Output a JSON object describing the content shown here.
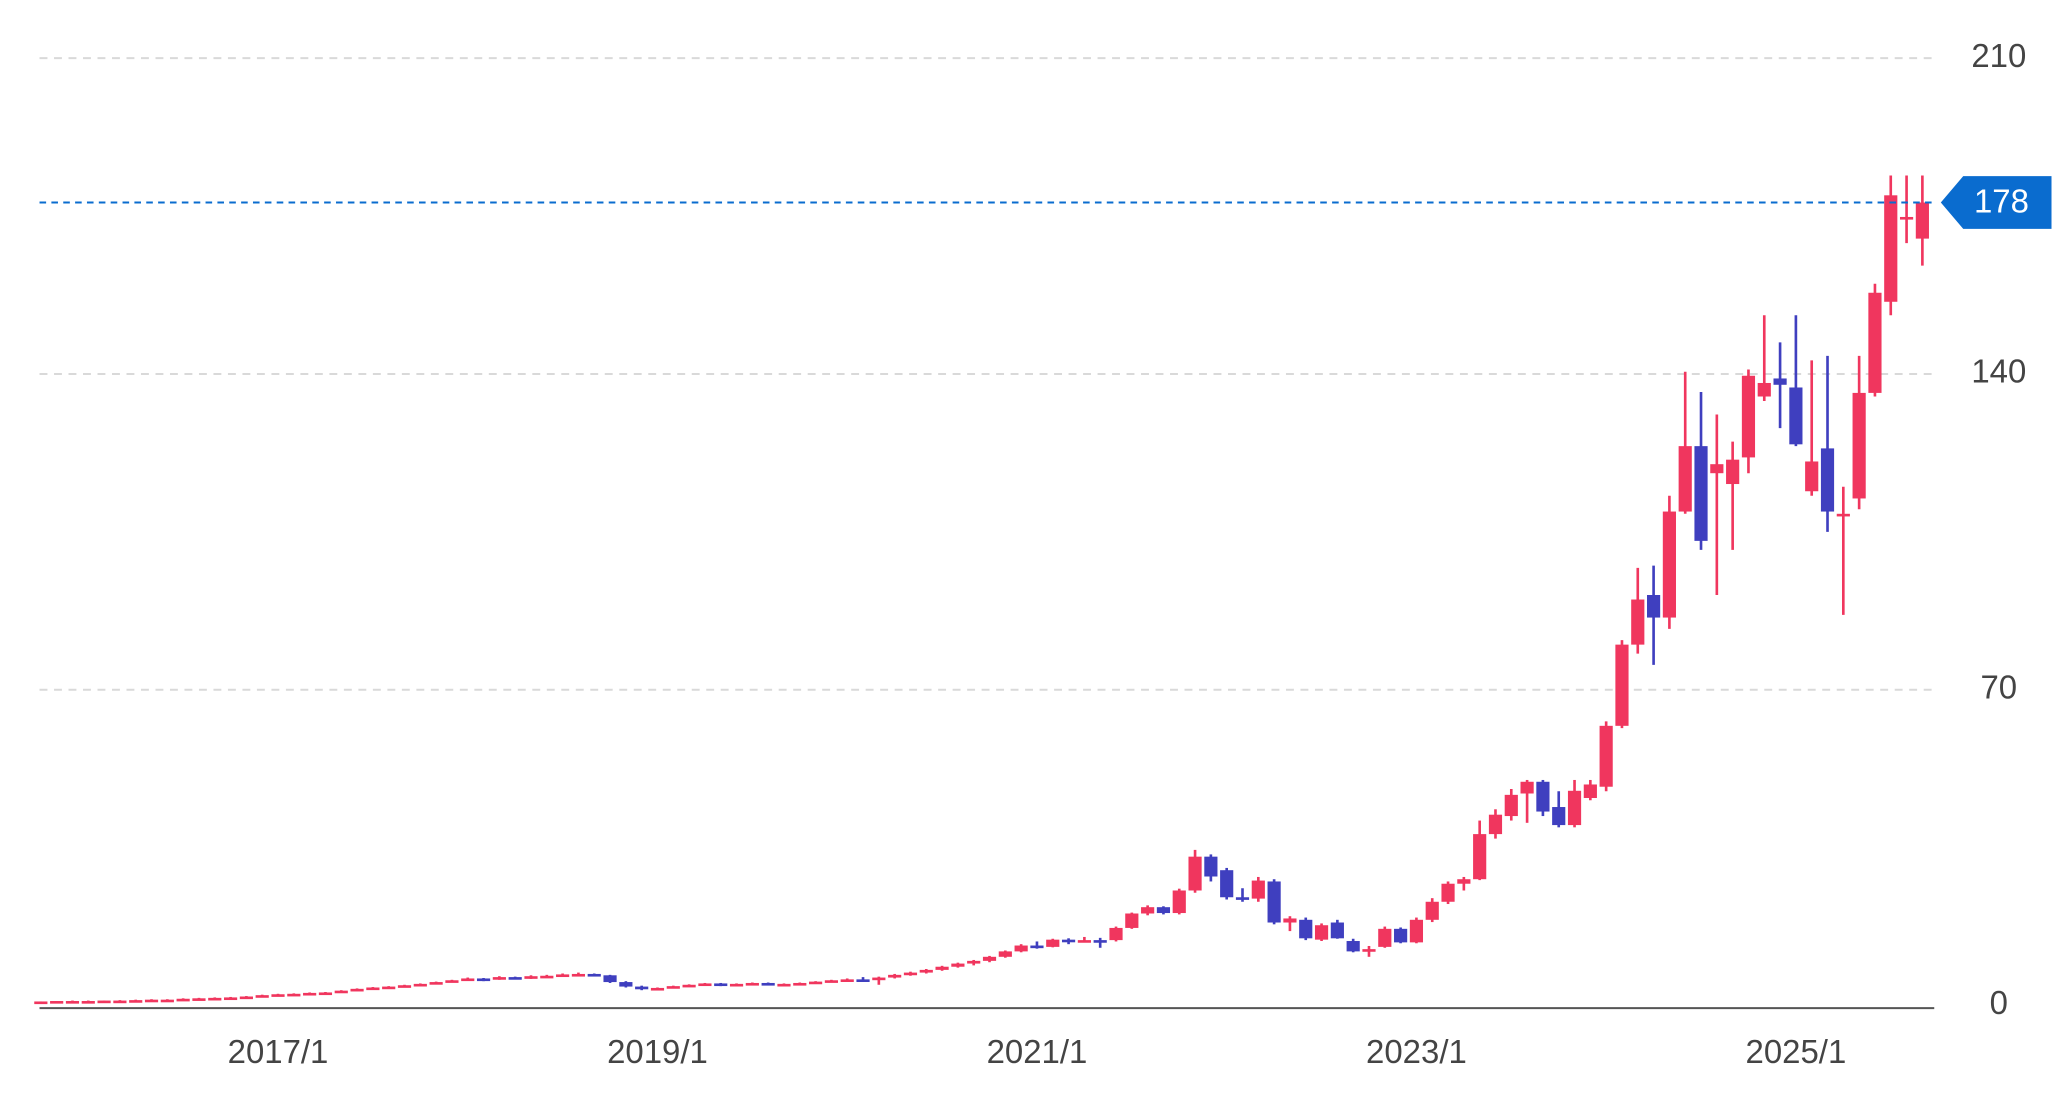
{
  "chart_data": {
    "type": "candlestick",
    "categories": [
      null,
      null,
      null,
      null,
      null,
      null,
      null,
      null,
      null,
      null,
      null,
      null,
      null,
      null,
      null,
      "2017/1",
      null,
      null,
      null,
      null,
      null,
      null,
      null,
      null,
      null,
      null,
      null,
      null,
      null,
      null,
      null,
      null,
      null,
      null,
      null,
      null,
      null,
      null,
      null,
      "2019/1",
      null,
      null,
      null,
      null,
      null,
      null,
      null,
      null,
      null,
      null,
      null,
      null,
      null,
      null,
      null,
      null,
      null,
      null,
      null,
      null,
      null,
      null,
      null,
      "2021/1",
      null,
      null,
      null,
      null,
      null,
      null,
      null,
      null,
      null,
      null,
      null,
      null,
      null,
      null,
      null,
      null,
      null,
      null,
      null,
      null,
      null,
      null,
      null,
      "2023/1",
      null,
      null,
      null,
      null,
      null,
      null,
      null,
      null,
      null,
      null,
      null,
      null,
      null,
      null,
      null,
      null,
      null,
      null,
      null,
      null,
      null,
      null,
      null,
      "2025/1",
      null,
      null,
      null,
      null,
      null,
      null,
      null,
      null
    ],
    "ohlc": [
      [
        0.8,
        0.9,
        0.8,
        0.9
      ],
      [
        0.9,
        1.0,
        0.9,
        1.0
      ],
      [
        1.0,
        1.1,
        0.9,
        1.0
      ],
      [
        1.0,
        1.1,
        0.9,
        1.0
      ],
      [
        1.0,
        1.1,
        1.0,
        1.1
      ],
      [
        1.1,
        1.2,
        1.0,
        1.1
      ],
      [
        1.1,
        1.3,
        1.1,
        1.2
      ],
      [
        1.2,
        1.4,
        1.2,
        1.3
      ],
      [
        1.3,
        1.4,
        1.2,
        1.3
      ],
      [
        1.3,
        1.6,
        1.3,
        1.5
      ],
      [
        1.5,
        1.7,
        1.5,
        1.6
      ],
      [
        1.6,
        1.8,
        1.6,
        1.7
      ],
      [
        1.7,
        1.9,
        1.7,
        1.8
      ],
      [
        1.8,
        2.1,
        1.8,
        2.0
      ],
      [
        2.0,
        2.4,
        2.0,
        2.3
      ],
      [
        2.3,
        2.6,
        2.2,
        2.5
      ],
      [
        2.5,
        2.7,
        2.4,
        2.6
      ],
      [
        2.6,
        2.9,
        2.5,
        2.8
      ],
      [
        2.8,
        3.0,
        2.7,
        2.9
      ],
      [
        2.9,
        3.4,
        2.9,
        3.3
      ],
      [
        3.3,
        3.8,
        3.2,
        3.7
      ],
      [
        3.7,
        4.1,
        3.6,
        4.0
      ],
      [
        4.0,
        4.3,
        3.9,
        4.2
      ],
      [
        4.2,
        4.6,
        4.1,
        4.5
      ],
      [
        4.5,
        4.9,
        4.4,
        4.8
      ],
      [
        4.8,
        5.3,
        4.7,
        5.2
      ],
      [
        5.2,
        5.7,
        5.1,
        5.6
      ],
      [
        5.6,
        6.2,
        5.5,
        6.0
      ],
      [
        6.0,
        6.1,
        5.4,
        5.8
      ],
      [
        5.8,
        6.5,
        5.7,
        6.3
      ],
      [
        6.3,
        6.4,
        5.8,
        6.0
      ],
      [
        6.0,
        6.7,
        5.9,
        6.5
      ],
      [
        6.5,
        6.8,
        6.3,
        6.6
      ],
      [
        6.6,
        7.1,
        6.5,
        6.9
      ],
      [
        6.9,
        7.3,
        6.8,
        7.0
      ],
      [
        7.0,
        7.1,
        6.5,
        6.7
      ],
      [
        6.7,
        6.8,
        5.0,
        5.2
      ],
      [
        5.2,
        5.4,
        4.0,
        4.2
      ],
      [
        4.2,
        4.4,
        3.4,
        3.6
      ],
      [
        3.6,
        4.0,
        3.5,
        3.9
      ],
      [
        3.9,
        4.4,
        3.8,
        4.3
      ],
      [
        4.3,
        4.7,
        4.2,
        4.6
      ],
      [
        4.6,
        5.0,
        4.5,
        4.9
      ],
      [
        4.9,
        5.0,
        4.3,
        4.5
      ],
      [
        4.5,
        4.9,
        4.4,
        4.8
      ],
      [
        4.8,
        5.1,
        4.7,
        5.0
      ],
      [
        5.0,
        5.1,
        4.5,
        4.6
      ],
      [
        4.6,
        4.9,
        4.5,
        4.8
      ],
      [
        4.8,
        5.1,
        4.7,
        5.0
      ],
      [
        5.0,
        5.4,
        4.9,
        5.3
      ],
      [
        5.3,
        5.7,
        5.2,
        5.6
      ],
      [
        5.6,
        6.0,
        5.5,
        5.8
      ],
      [
        5.8,
        6.3,
        5.4,
        5.7
      ],
      [
        5.7,
        6.4,
        4.6,
        6.2
      ],
      [
        6.2,
        7.0,
        6.0,
        6.8
      ],
      [
        6.8,
        7.5,
        6.6,
        7.3
      ],
      [
        7.3,
        8.1,
        7.1,
        7.9
      ],
      [
        7.9,
        8.8,
        7.7,
        8.6
      ],
      [
        8.6,
        9.5,
        8.4,
        9.3
      ],
      [
        9.3,
        10.1,
        8.9,
        9.9
      ],
      [
        9.9,
        11.0,
        9.6,
        10.8
      ],
      [
        10.8,
        12.2,
        10.6,
        12.0
      ],
      [
        12.0,
        13.6,
        11.8,
        13.3
      ],
      [
        13.3,
        14.2,
        12.6,
        13.0
      ],
      [
        13.0,
        14.8,
        12.9,
        14.6
      ],
      [
        14.6,
        14.9,
        13.6,
        14.3
      ],
      [
        14.3,
        15.2,
        14.0,
        14.5
      ],
      [
        14.5,
        15.0,
        12.8,
        14.3
      ],
      [
        14.5,
        17.5,
        14.2,
        17.2
      ],
      [
        17.2,
        20.6,
        17.0,
        20.4
      ],
      [
        20.4,
        22.2,
        20.0,
        21.8
      ],
      [
        21.8,
        22.0,
        20.2,
        20.5
      ],
      [
        20.5,
        25.9,
        20.2,
        25.5
      ],
      [
        25.5,
        34.5,
        25.0,
        33.0
      ],
      [
        33.0,
        33.5,
        27.5,
        28.6
      ],
      [
        30.0,
        30.5,
        23.5,
        24.0
      ],
      [
        24.0,
        26.0,
        23.0,
        23.7
      ],
      [
        23.7,
        28.5,
        23.0,
        27.7
      ],
      [
        27.5,
        28.0,
        18.0,
        18.4
      ],
      [
        18.4,
        19.8,
        16.5,
        19.3
      ],
      [
        19.0,
        19.5,
        14.5,
        14.9
      ],
      [
        14.6,
        18.2,
        14.3,
        17.8
      ],
      [
        18.4,
        19.0,
        14.8,
        14.9
      ],
      [
        14.3,
        14.8,
        11.8,
        12.0
      ],
      [
        12.0,
        13.2,
        10.8,
        12.5
      ],
      [
        13.0,
        17.5,
        12.8,
        17.0
      ],
      [
        17.0,
        17.3,
        13.8,
        14.0
      ],
      [
        14.0,
        19.5,
        13.8,
        19.0
      ],
      [
        19.0,
        23.8,
        18.5,
        23.0
      ],
      [
        23.0,
        27.5,
        22.5,
        27.0
      ],
      [
        27.0,
        28.5,
        25.5,
        28.0
      ],
      [
        28.0,
        41.0,
        27.8,
        38.0
      ],
      [
        38.0,
        43.5,
        37.0,
        42.3
      ],
      [
        42.0,
        48.0,
        41.0,
        46.7
      ],
      [
        47.0,
        50.0,
        40.5,
        49.6
      ],
      [
        49.6,
        50.0,
        42.0,
        43.0
      ],
      [
        44.0,
        47.5,
        39.5,
        40.0
      ],
      [
        40.0,
        50.0,
        39.5,
        47.6
      ],
      [
        46.0,
        50.0,
        45.5,
        49.0
      ],
      [
        48.5,
        63.0,
        47.5,
        62.0
      ],
      [
        62.0,
        81.0,
        61.5,
        80.0
      ],
      [
        80.0,
        97.0,
        78.0,
        90.0
      ],
      [
        91.0,
        97.5,
        75.5,
        86.0
      ],
      [
        86.0,
        113.0,
        83.5,
        109.5
      ],
      [
        109.5,
        140.5,
        109.0,
        124.0
      ],
      [
        124.0,
        136.0,
        101.0,
        103.0
      ],
      [
        118.0,
        131.0,
        91.0,
        120.0
      ],
      [
        115.6,
        125.0,
        101.0,
        121.0
      ],
      [
        121.5,
        141.0,
        118.0,
        139.6
      ],
      [
        135.0,
        153.0,
        134.0,
        138.0
      ],
      [
        139.0,
        147.0,
        128.0,
        137.6
      ],
      [
        137.0,
        153.0,
        124.0,
        124.4
      ],
      [
        114.0,
        143.0,
        113.0,
        120.6
      ],
      [
        123.5,
        144.0,
        105.0,
        109.5
      ],
      [
        108.5,
        115.0,
        86.6,
        109.0
      ],
      [
        112.4,
        144.0,
        110.0,
        135.8
      ],
      [
        135.8,
        160.0,
        135.0,
        158.0
      ],
      [
        156.0,
        184.0,
        153.0,
        179.6
      ],
      [
        174.4,
        184.0,
        169.0,
        174.8
      ],
      [
        170.0,
        184.0,
        164.0,
        178.0
      ]
    ],
    "up_color": "#f0365e",
    "down_color": "#3f3fbf",
    "ylim": [
      0,
      210
    ],
    "yticks": [
      0,
      70,
      140,
      210
    ],
    "grid": true,
    "last_value": 178,
    "last_value_color": "#0a6ccf"
  }
}
